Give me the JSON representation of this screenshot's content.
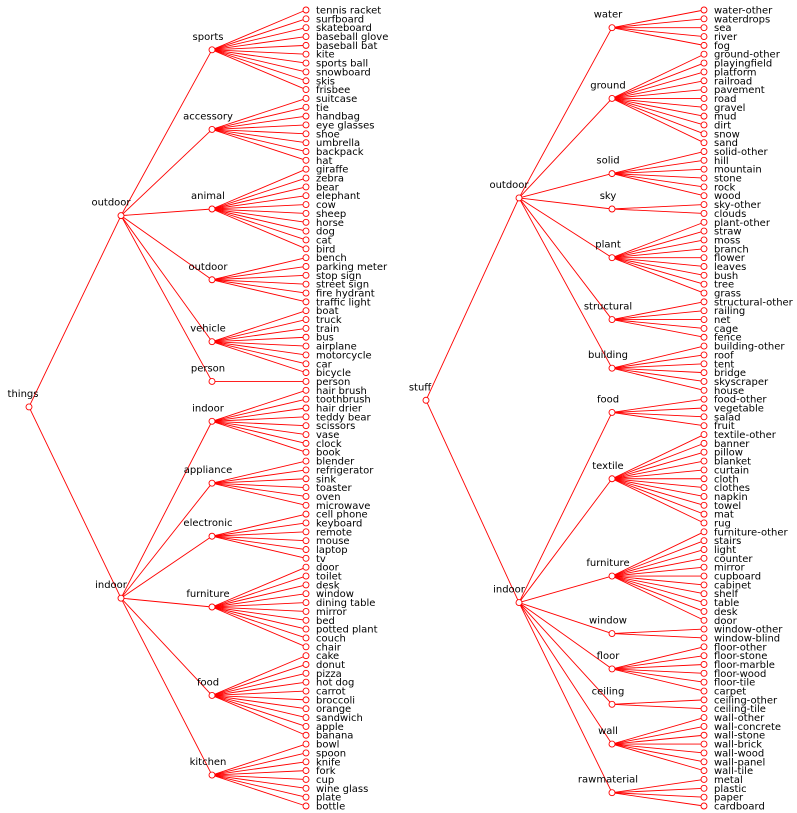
{
  "colors": {
    "edge": "#ff0000",
    "node": "#ff0000",
    "text": "#000000"
  },
  "trees": [
    {
      "label": "things",
      "groups": [
        {
          "label": "outdoor",
          "children": [
            {
              "label": "sports",
              "leaves": [
                "tennis racket",
                "surfboard",
                "skateboard",
                "baseball glove",
                "baseball bat",
                "kite",
                "sports ball",
                "snowboard",
                "skis",
                "frisbee"
              ]
            },
            {
              "label": "accessory",
              "leaves": [
                "suitcase",
                "tie",
                "handbag",
                "eye glasses",
                "shoe",
                "umbrella",
                "backpack",
                "hat"
              ]
            },
            {
              "label": "animal",
              "leaves": [
                "giraffe",
                "zebra",
                "bear",
                "elephant",
                "cow",
                "sheep",
                "horse",
                "dog",
                "cat",
                "bird"
              ]
            },
            {
              "label": "outdoor",
              "leaves": [
                "bench",
                "parking meter",
                "stop sign",
                "street sign",
                "fire hydrant",
                "traffic light"
              ]
            },
            {
              "label": "vehicle",
              "leaves": [
                "boat",
                "truck",
                "train",
                "bus",
                "airplane",
                "motorcycle",
                "car",
                "bicycle"
              ]
            },
            {
              "label": "person",
              "leaves": [
                "person"
              ]
            }
          ]
        },
        {
          "label": "indoor",
          "children": [
            {
              "label": "indoor",
              "leaves": [
                "hair brush",
                "toothbrush",
                "hair drier",
                "teddy bear",
                "scissors",
                "vase",
                "clock",
                "book"
              ]
            },
            {
              "label": "appliance",
              "leaves": [
                "blender",
                "refrigerator",
                "sink",
                "toaster",
                "oven",
                "microwave"
              ]
            },
            {
              "label": "electronic",
              "leaves": [
                "cell phone",
                "keyboard",
                "remote",
                "mouse",
                "laptop",
                "tv"
              ]
            },
            {
              "label": "furniture",
              "leaves": [
                "door",
                "toilet",
                "desk",
                "window",
                "dining table",
                "mirror",
                "bed",
                "potted plant",
                "couch",
                "chair"
              ]
            },
            {
              "label": "food",
              "leaves": [
                "cake",
                "donut",
                "pizza",
                "hot dog",
                "carrot",
                "broccoli",
                "orange",
                "sandwich",
                "apple",
                "banana"
              ]
            },
            {
              "label": "kitchen",
              "leaves": [
                "bowl",
                "spoon",
                "knife",
                "fork",
                "cup",
                "wine glass",
                "plate",
                "bottle"
              ]
            }
          ]
        }
      ]
    },
    {
      "label": "stuff",
      "groups": [
        {
          "label": "outdoor",
          "children": [
            {
              "label": "water",
              "leaves": [
                "water-other",
                "waterdrops",
                "sea",
                "river",
                "fog"
              ]
            },
            {
              "label": "ground",
              "leaves": [
                "ground-other",
                "playingfield",
                "platform",
                "railroad",
                "pavement",
                "road",
                "gravel",
                "mud",
                "dirt",
                "snow",
                "sand"
              ]
            },
            {
              "label": "solid",
              "leaves": [
                "solid-other",
                "hill",
                "mountain",
                "stone",
                "rock",
                "wood"
              ]
            },
            {
              "label": "sky",
              "leaves": [
                "sky-other",
                "clouds"
              ]
            },
            {
              "label": "plant",
              "leaves": [
                "plant-other",
                "straw",
                "moss",
                "branch",
                "flower",
                "leaves",
                "bush",
                "tree",
                "grass"
              ]
            },
            {
              "label": "structural",
              "leaves": [
                "structural-other",
                "railing",
                "net",
                "cage",
                "fence"
              ]
            },
            {
              "label": "building",
              "leaves": [
                "building-other",
                "roof",
                "tent",
                "bridge",
                "skyscraper",
                "house"
              ]
            }
          ]
        },
        {
          "label": "indoor",
          "children": [
            {
              "label": "food",
              "leaves": [
                "food-other",
                "vegetable",
                "salad",
                "fruit"
              ]
            },
            {
              "label": "textile",
              "leaves": [
                "textile-other",
                "banner",
                "pillow",
                "blanket",
                "curtain",
                "cloth",
                "clothes",
                "napkin",
                "towel",
                "mat",
                "rug"
              ]
            },
            {
              "label": "furniture",
              "leaves": [
                "furniture-other",
                "stairs",
                "light",
                "counter",
                "mirror",
                "cupboard",
                "cabinet",
                "shelf",
                "table",
                "desk",
                "door"
              ]
            },
            {
              "label": "window",
              "leaves": [
                "window-other",
                "window-blind"
              ]
            },
            {
              "label": "floor",
              "leaves": [
                "floor-other",
                "floor-stone",
                "floor-marble",
                "floor-wood",
                "floor-tile",
                "carpet"
              ]
            },
            {
              "label": "ceiling",
              "leaves": [
                "ceiling-other",
                "ceiling-tile"
              ]
            },
            {
              "label": "wall",
              "leaves": [
                "wall-other",
                "wall-concrete",
                "wall-stone",
                "wall-brick",
                "wall-wood",
                "wall-panel",
                "wall-tile"
              ]
            },
            {
              "label": "rawmaterial",
              "leaves": [
                "metal",
                "plastic",
                "paper",
                "cardboard"
              ]
            }
          ]
        }
      ]
    }
  ]
}
